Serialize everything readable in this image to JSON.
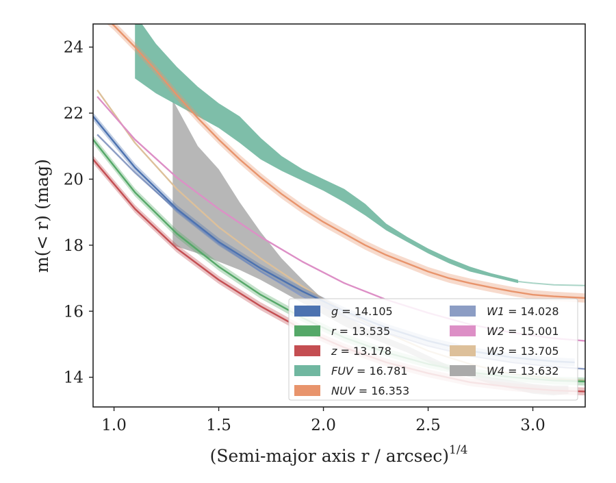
{
  "chart_data": {
    "type": "line",
    "xlabel": "(Semi-major axis r / arcsec)",
    "xlabel_exp": "1/4",
    "ylabel": "m(< r) (mag)",
    "xlim": [
      0.9,
      3.25
    ],
    "ylim": [
      24.7,
      13.1
    ],
    "y_inverted": true,
    "grid": false,
    "legend_placement": "lower-right",
    "xticks": [
      "1.0",
      "1.5",
      "2.0",
      "2.5",
      "3.0"
    ],
    "yticks": [
      "14",
      "16",
      "18",
      "20",
      "22",
      "24"
    ],
    "series": [
      {
        "name": "g",
        "label": "= 14.105",
        "color": "#4c72b0",
        "band": 0.12,
        "x": [
          0.9,
          1.1,
          1.3,
          1.5,
          1.7,
          1.9,
          2.1,
          2.3,
          2.5,
          2.7,
          2.9,
          3.1,
          3.2
        ],
        "y": [
          21.9,
          20.35,
          19.1,
          18.1,
          17.3,
          16.6,
          16.0,
          15.5,
          15.1,
          14.8,
          14.6,
          14.48,
          14.45
        ]
      },
      {
        "name": "r",
        "label": "= 13.535",
        "color": "#55a868",
        "band": 0.12,
        "x": [
          0.9,
          1.1,
          1.3,
          1.5,
          1.7,
          1.9,
          2.1,
          2.3,
          2.5,
          2.7,
          2.9,
          3.1,
          3.25
        ],
        "y": [
          21.2,
          19.6,
          18.35,
          17.35,
          16.5,
          15.8,
          15.2,
          14.75,
          14.4,
          14.15,
          14.0,
          13.9,
          13.87
        ]
      },
      {
        "name": "z",
        "label": "= 13.178",
        "color": "#c44e52",
        "band": 0.12,
        "x": [
          0.9,
          1.1,
          1.3,
          1.5,
          1.7,
          1.9,
          2.1,
          2.3,
          2.5,
          2.7,
          2.9,
          3.1,
          3.25
        ],
        "y": [
          20.6,
          19.1,
          17.9,
          16.95,
          16.15,
          15.45,
          14.9,
          14.45,
          14.12,
          13.85,
          13.7,
          13.6,
          13.57
        ]
      },
      {
        "name": "FUV",
        "label": "= 16.781",
        "color": "#70b7a0",
        "band": 0.0,
        "x": [
          1.1,
          1.2,
          1.3,
          1.4,
          1.5,
          1.6,
          1.7,
          1.8,
          1.9,
          2.0,
          2.1,
          2.2,
          2.3,
          2.4,
          2.5,
          2.6,
          2.7,
          2.8,
          2.93
        ],
        "y_upper": [
          23.05,
          22.6,
          22.25,
          21.9,
          21.55,
          21.1,
          20.6,
          20.25,
          19.95,
          19.65,
          19.3,
          18.9,
          18.45,
          18.1,
          17.75,
          17.45,
          17.2,
          17.05,
          16.85
        ],
        "y_lower": [
          25.0,
          24.1,
          23.4,
          22.8,
          22.3,
          21.9,
          21.25,
          20.7,
          20.3,
          20.0,
          19.7,
          19.25,
          18.65,
          18.25,
          17.9,
          17.6,
          17.35,
          17.15,
          16.95
        ],
        "ext_x": [
          2.93,
          3.0,
          3.1,
          3.25
        ],
        "ext_y": [
          16.9,
          16.85,
          16.8,
          16.78
        ]
      },
      {
        "name": "NUV",
        "label": "= 16.353",
        "color": "#e8946c",
        "band": 0.14,
        "x": [
          0.9,
          1.0,
          1.1,
          1.2,
          1.3,
          1.4,
          1.5,
          1.6,
          1.7,
          1.8,
          1.9,
          2.0,
          2.1,
          2.2,
          2.3,
          2.4,
          2.5,
          2.6,
          2.7,
          2.8,
          2.9,
          3.0,
          3.1,
          3.25
        ],
        "y": [
          25.2,
          24.65,
          24.0,
          23.3,
          22.55,
          21.85,
          21.2,
          20.6,
          20.05,
          19.55,
          19.1,
          18.7,
          18.35,
          18.0,
          17.7,
          17.45,
          17.2,
          17.0,
          16.85,
          16.72,
          16.6,
          16.5,
          16.45,
          16.4
        ]
      },
      {
        "name": "W1",
        "label": "= 14.028",
        "color": "#8c9dc4",
        "band": 0.0,
        "x": [
          0.92,
          1.1,
          1.3,
          1.5,
          1.7,
          1.9,
          2.1,
          2.3,
          2.5,
          2.7,
          2.9,
          3.1,
          3.25
        ],
        "y": [
          21.35,
          20.2,
          19.05,
          18.05,
          17.2,
          16.45,
          15.85,
          15.35,
          14.95,
          14.65,
          14.45,
          14.32,
          14.25
        ]
      },
      {
        "name": "W2",
        "label": "= 15.001",
        "color": "#dd8fc6",
        "band": 0.0,
        "x": [
          0.92,
          1.1,
          1.3,
          1.5,
          1.7,
          1.9,
          2.1,
          2.3,
          2.5,
          2.7,
          2.9,
          3.1,
          3.25
        ],
        "y": [
          22.5,
          21.2,
          20.05,
          19.1,
          18.25,
          17.5,
          16.85,
          16.35,
          15.95,
          15.6,
          15.35,
          15.18,
          15.1
        ]
      },
      {
        "name": "W3",
        "label": "= 13.705",
        "color": "#ddc09a",
        "band": 0.0,
        "x": [
          0.92,
          1.1,
          1.3,
          1.5,
          1.7,
          1.9,
          2.1,
          2.3,
          2.5,
          2.7,
          2.9,
          3.1,
          3.25
        ],
        "y": [
          22.7,
          21.1,
          19.7,
          18.55,
          17.6,
          16.75,
          16.0,
          15.35,
          14.8,
          14.4,
          14.1,
          13.95,
          13.9
        ]
      },
      {
        "name": "W4",
        "label": "= 13.632",
        "color": "#aaaaaa",
        "band": 0.0,
        "x": [
          1.28,
          1.4,
          1.5,
          1.6,
          1.7,
          1.8,
          1.9,
          2.0,
          2.1,
          2.2,
          2.3,
          2.4,
          2.5,
          2.6,
          2.7,
          2.8,
          2.9,
          3.0,
          3.1,
          3.17
        ],
        "y_upper": [
          18.0,
          17.75,
          17.5,
          17.25,
          16.95,
          16.6,
          16.25,
          15.9,
          15.55,
          15.25,
          15.0,
          14.75,
          14.45,
          14.2,
          14.0,
          13.8,
          13.65,
          13.5,
          13.45,
          13.5
        ],
        "y_lower": [
          22.4,
          21.0,
          20.3,
          19.3,
          18.4,
          17.6,
          16.95,
          16.35,
          15.9,
          15.5,
          15.2,
          14.95,
          14.65,
          14.35,
          14.15,
          14.0,
          13.9,
          13.8,
          13.75,
          13.75
        ]
      }
    ]
  }
}
